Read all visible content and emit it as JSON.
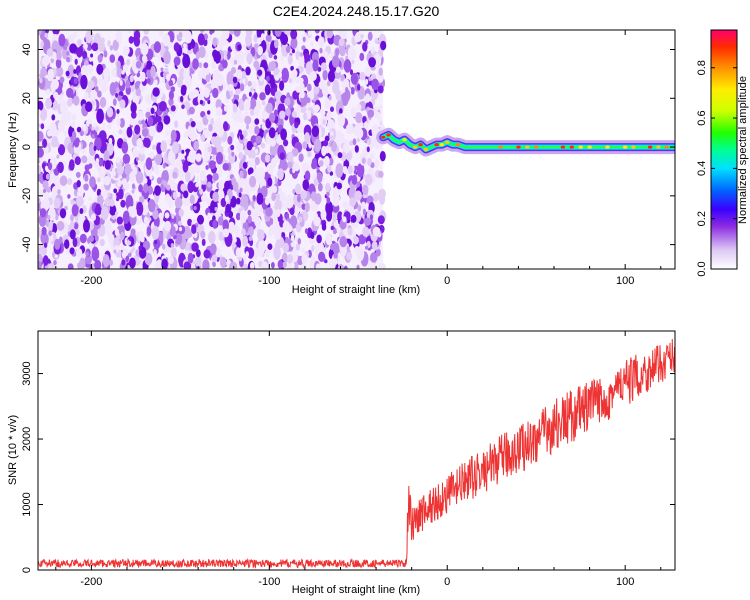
{
  "figure_title": "C2E4.2024.248.15.17.G20",
  "chart_data": [
    {
      "type": "heatmap",
      "title": "",
      "xlabel": "Height of straight line (km)",
      "ylabel": "Frequency (Hz)",
      "xlim": [
        -230,
        128
      ],
      "ylim": [
        -50,
        48
      ],
      "xticks": [
        -200,
        -100,
        0,
        100
      ],
      "yticks": [
        -40,
        -20,
        0,
        20,
        40
      ],
      "noise_region_x": [
        -230,
        -36
      ],
      "signal_region_x": [
        -36,
        128
      ],
      "signal_track": {
        "x": [
          -36,
          -33,
          -30,
          -27,
          -24,
          -21,
          -18,
          -15,
          -12,
          -9,
          -6,
          -3,
          0,
          3,
          6,
          10,
          20,
          40,
          60,
          80,
          100,
          128
        ],
        "y": [
          4,
          5,
          3,
          2,
          3,
          1,
          0,
          1,
          -1,
          0,
          1,
          1,
          2,
          1,
          1,
          0,
          0,
          0,
          0,
          0,
          0,
          0
        ]
      },
      "colorbar": {
        "label": "Normalized spectral amplitude",
        "range": [
          0.0,
          0.95
        ],
        "ticks": [
          0.0,
          0.2,
          0.4,
          0.6,
          0.8
        ],
        "tick_labels": [
          "0.0",
          "0.2",
          "0.4",
          "0.6",
          "0.8"
        ]
      }
    },
    {
      "type": "line",
      "title": "",
      "xlabel": "Height of straight line (km)",
      "ylabel": "SNR (10 * v/v)",
      "xlim": [
        -230,
        128
      ],
      "ylim": [
        0,
        3650
      ],
      "xticks": [
        -200,
        -100,
        0,
        100
      ],
      "yticks": [
        0,
        1000,
        2000,
        3000
      ],
      "series": [
        {
          "color": "#ee3333",
          "x": [
            -230,
            -200,
            -150,
            -100,
            -50,
            -25,
            -23,
            -22,
            -21,
            -20,
            -18,
            -15,
            -10,
            -5,
            0,
            10,
            20,
            30,
            40,
            50,
            60,
            70,
            80,
            90,
            100,
            110,
            120,
            128
          ],
          "values": [
            100,
            100,
            100,
            100,
            100,
            100,
            110,
            900,
            1100,
            700,
            750,
            850,
            950,
            1050,
            1150,
            1350,
            1500,
            1700,
            1850,
            2000,
            2200,
            2350,
            2500,
            2650,
            2850,
            3000,
            3150,
            3300
          ],
          "spread": [
            60,
            60,
            60,
            60,
            60,
            60,
            60,
            400,
            400,
            350,
            300,
            300,
            300,
            300,
            300,
            320,
            340,
            360,
            380,
            400,
            420,
            420,
            400,
            380,
            360,
            340,
            300,
            280
          ]
        }
      ],
      "grid": false
    }
  ]
}
